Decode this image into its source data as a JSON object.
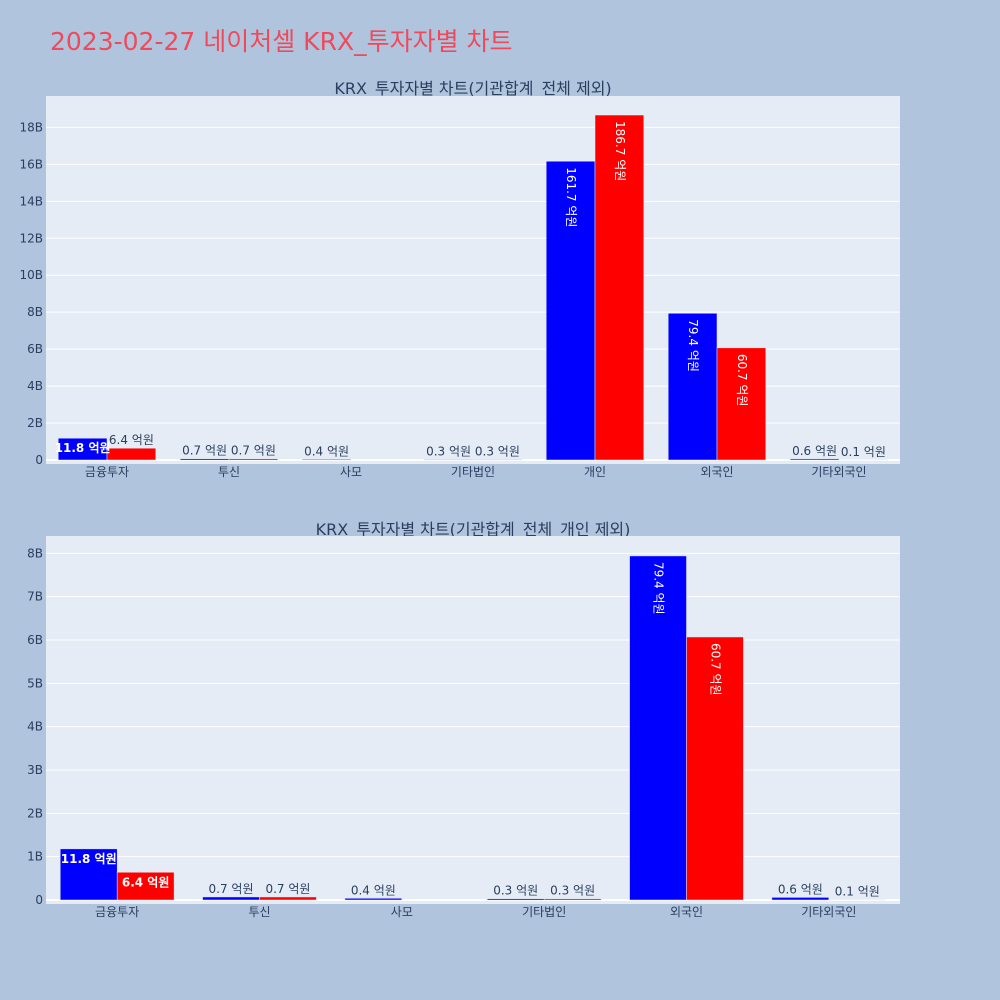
{
  "title": "2023-02-27 네이처셀 KRX_투자자별 차트",
  "colors": {
    "page_bg": "#b0c4de",
    "plot_bg": "#e5ecf6",
    "title": "#f04a5a",
    "series_1": "#0000ff",
    "series_2": "#ff0000"
  },
  "chart_data": [
    {
      "type": "bar",
      "title": "KRX_투자자별 차트(기관합계_전체 제외)",
      "categories": [
        "금융투자",
        "투신",
        "사모",
        "기타법인",
        "개인",
        "외국인",
        "기타외국인"
      ],
      "series": [
        {
          "color": "#0000ff",
          "values": [
            1.18,
            0.07,
            0.04,
            0.03,
            16.17,
            7.94,
            0.06
          ],
          "labels": [
            "11.8 억원",
            "0.7 억원",
            "0.4 억원",
            "0.3 억원",
            "161.7 억원",
            "79.4 억원",
            "0.6 억원"
          ]
        },
        {
          "color": "#ff0000",
          "values": [
            0.64,
            0.07,
            0.0,
            0.03,
            18.67,
            6.07,
            0.01
          ],
          "labels": [
            "6.4 억원",
            "0.7 억원",
            "",
            "0.3 억원",
            "186.7 억원",
            "60.7 억원",
            "0.1 억원"
          ]
        }
      ],
      "y_unit": "B",
      "y_ticks": [
        "0",
        "2B",
        "4B",
        "6B",
        "8B",
        "10B",
        "12B",
        "14B",
        "16B",
        "18B"
      ],
      "ylim": [
        0,
        19.7
      ],
      "grid": true
    },
    {
      "type": "bar",
      "title": "KRX_투자자별 차트(기관합계_전체_개인 제외)",
      "categories": [
        "금융투자",
        "투신",
        "사모",
        "기타법인",
        "외국인",
        "기타외국인"
      ],
      "series": [
        {
          "color": "#0000ff",
          "values": [
            1.18,
            0.07,
            0.04,
            0.03,
            7.94,
            0.06
          ],
          "labels": [
            "11.8 억원",
            "0.7 억원",
            "0.4 억원",
            "0.3 억원",
            "79.4 억원",
            "0.6 억원"
          ]
        },
        {
          "color": "#ff0000",
          "values": [
            0.64,
            0.07,
            0.0,
            0.03,
            6.07,
            0.01
          ],
          "labels": [
            "6.4 억원",
            "0.7 억원",
            "",
            "0.3 억원",
            "60.7 억원",
            "0.1 억원"
          ]
        }
      ],
      "y_unit": "B",
      "y_ticks": [
        "0",
        "1B",
        "2B",
        "3B",
        "4B",
        "5B",
        "6B",
        "7B",
        "8B"
      ],
      "ylim": [
        0,
        8.4
      ],
      "grid": true
    }
  ]
}
